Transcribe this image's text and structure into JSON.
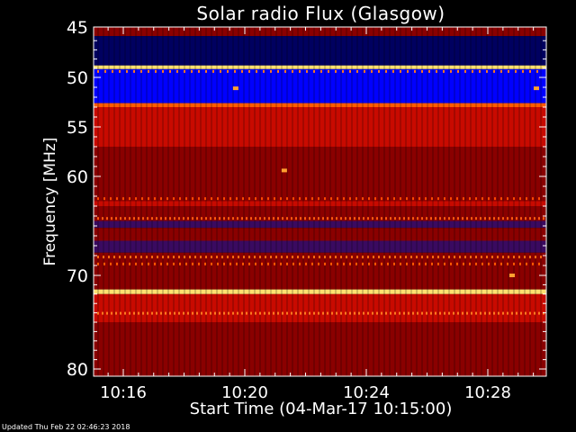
{
  "header": {
    "title": "Solar radio Flux (Glasgow)"
  },
  "footer": {
    "updated": "Updated Thu Feb 22 02:46:23 2018"
  },
  "chart_data": {
    "type": "heatmap",
    "title": "Solar radio Flux (Glasgow)",
    "xlabel": "Start Time (04-Mar-17 10:15:00)",
    "ylabel": "Frequency [MHz]",
    "x_ticks": [
      {
        "label": "10:16",
        "minutes": 1
      },
      {
        "label": "10:20",
        "minutes": 5
      },
      {
        "label": "10:24",
        "minutes": 9
      },
      {
        "label": "10:28",
        "minutes": 13
      }
    ],
    "y_ticks": [
      {
        "label": "45",
        "mhz": 45
      },
      {
        "label": "50",
        "mhz": 50
      },
      {
        "label": "55",
        "mhz": 55
      },
      {
        "label": "60",
        "mhz": 60
      },
      {
        "label": "70",
        "mhz": 70
      },
      {
        "label": "80",
        "mhz": 80
      }
    ],
    "xlim_minutes": [
      0,
      15
    ],
    "ylim_mhz": [
      45,
      80
    ],
    "colors": {
      "background": "#000000",
      "navy": "#000060",
      "blue": "#0000ff",
      "purple": "#3a0a60",
      "dark_red": "#8a0000",
      "red": "#c80a00",
      "orange": "#ff5a00",
      "yellow": "#ffe070"
    },
    "bands": [
      {
        "from_mhz": 45.0,
        "to_mhz": 45.5,
        "color": "dark_red"
      },
      {
        "from_mhz": 45.5,
        "to_mhz": 48.7,
        "color": "navy"
      },
      {
        "from_mhz": 48.7,
        "to_mhz": 49.1,
        "color": "yellow"
      },
      {
        "from_mhz": 49.1,
        "to_mhz": 52.6,
        "color": "blue"
      },
      {
        "from_mhz": 52.6,
        "to_mhz": 53.0,
        "color": "orange"
      },
      {
        "from_mhz": 53.0,
        "to_mhz": 57.0,
        "color": "red"
      },
      {
        "from_mhz": 57.0,
        "to_mhz": 62.5,
        "color": "dark_red"
      },
      {
        "from_mhz": 62.5,
        "to_mhz": 63.0,
        "color": "red"
      },
      {
        "from_mhz": 63.0,
        "to_mhz": 64.5,
        "color": "dark_red"
      },
      {
        "from_mhz": 64.5,
        "to_mhz": 65.2,
        "color": "purple"
      },
      {
        "from_mhz": 65.2,
        "to_mhz": 66.5,
        "color": "dark_red"
      },
      {
        "from_mhz": 66.5,
        "to_mhz": 67.7,
        "color": "purple"
      },
      {
        "from_mhz": 67.7,
        "to_mhz": 71.5,
        "color": "dark_red"
      },
      {
        "from_mhz": 71.5,
        "to_mhz": 72.0,
        "color": "yellow"
      },
      {
        "from_mhz": 72.0,
        "to_mhz": 75.0,
        "color": "red"
      },
      {
        "from_mhz": 75.0,
        "to_mhz": 80.0,
        "color": "dark_red"
      }
    ],
    "bursts": [
      {
        "minutes": 6.3,
        "mhz": 59.4
      },
      {
        "minutes": 4.7,
        "mhz": 51.1
      },
      {
        "minutes": 14.6,
        "mhz": 51.1
      },
      {
        "minutes": 13.8,
        "mhz": 70.0
      }
    ],
    "grid": false,
    "legend": "none"
  }
}
